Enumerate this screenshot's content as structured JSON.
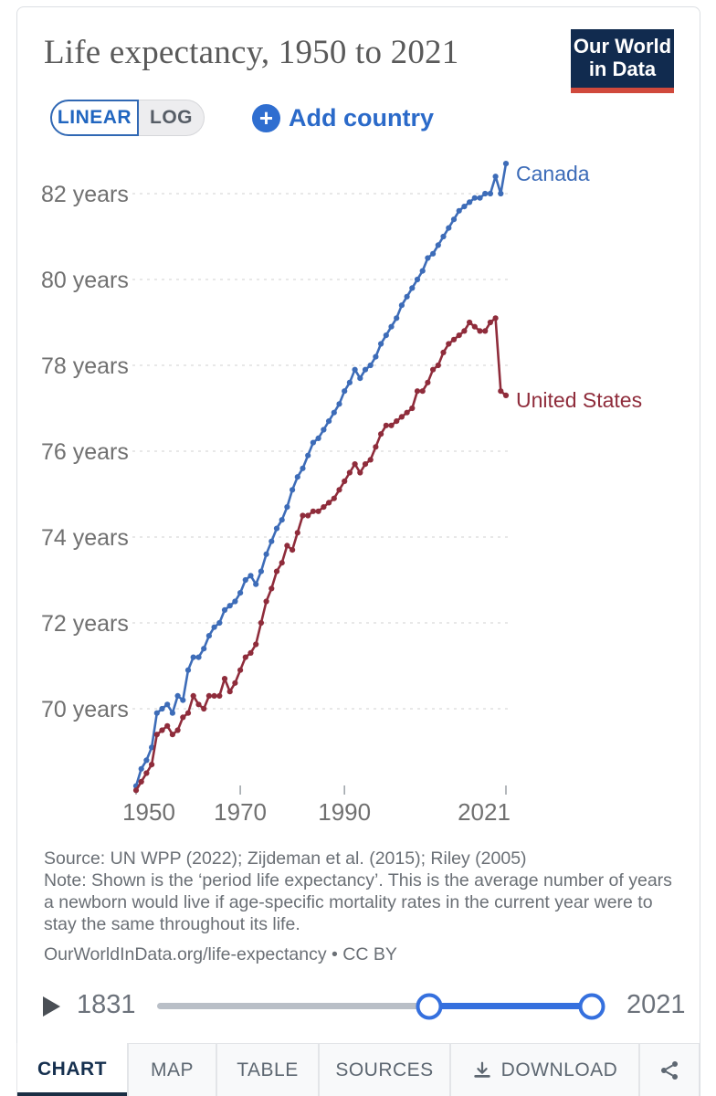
{
  "header": {
    "title": "Life expectancy, 1950 to 2021",
    "logo": {
      "line1": "Our World",
      "line2": "in Data"
    }
  },
  "controls": {
    "scale_toggle": {
      "linear_label": "LINEAR",
      "log_label": "LOG",
      "active": "LINEAR"
    },
    "add_country_label": "Add country"
  },
  "chart_data": {
    "type": "line",
    "title": "Life expectancy, 1950 to 2021",
    "y_unit": "years",
    "ylim": [
      68,
      83.5
    ],
    "xlim": [
      1948,
      2023
    ],
    "grid": "horizontal-dashed",
    "legend": "line-end-labels",
    "x": [
      1950,
      1951,
      1952,
      1953,
      1954,
      1955,
      1956,
      1957,
      1958,
      1959,
      1960,
      1961,
      1962,
      1963,
      1964,
      1965,
      1966,
      1967,
      1968,
      1969,
      1970,
      1971,
      1972,
      1973,
      1974,
      1975,
      1976,
      1977,
      1978,
      1979,
      1980,
      1981,
      1982,
      1983,
      1984,
      1985,
      1986,
      1987,
      1988,
      1989,
      1990,
      1991,
      1992,
      1993,
      1994,
      1995,
      1996,
      1997,
      1998,
      1999,
      2000,
      2001,
      2002,
      2003,
      2004,
      2005,
      2006,
      2007,
      2008,
      2009,
      2010,
      2011,
      2012,
      2013,
      2014,
      2015,
      2016,
      2017,
      2018,
      2019,
      2020,
      2021
    ],
    "series": [
      {
        "name": "Canada",
        "color": "#3d6cb8",
        "label_dy": 19,
        "values": [
          68.2,
          68.6,
          68.8,
          69.1,
          69.9,
          70.0,
          70.1,
          69.9,
          70.3,
          70.2,
          70.9,
          71.2,
          71.2,
          71.4,
          71.7,
          71.9,
          72.0,
          72.3,
          72.4,
          72.5,
          72.7,
          73.0,
          73.1,
          72.9,
          73.2,
          73.6,
          73.9,
          74.2,
          74.4,
          74.7,
          75.1,
          75.4,
          75.6,
          75.9,
          76.2,
          76.3,
          76.5,
          76.7,
          76.9,
          77.1,
          77.4,
          77.6,
          77.9,
          77.7,
          77.9,
          78.0,
          78.2,
          78.5,
          78.7,
          78.9,
          79.1,
          79.4,
          79.6,
          79.8,
          80.0,
          80.2,
          80.5,
          80.6,
          80.8,
          81.0,
          81.2,
          81.4,
          81.6,
          81.7,
          81.8,
          81.9,
          81.9,
          82.0,
          82.0,
          82.4,
          82.0,
          82.7
        ]
      },
      {
        "name": "United States",
        "color": "#8f2c3b",
        "label_dy": 13,
        "values": [
          68.1,
          68.3,
          68.5,
          68.7,
          69.4,
          69.5,
          69.6,
          69.4,
          69.5,
          69.8,
          69.9,
          70.3,
          70.1,
          70.0,
          70.3,
          70.3,
          70.3,
          70.7,
          70.4,
          70.6,
          70.9,
          71.2,
          71.3,
          71.5,
          72.0,
          72.5,
          72.8,
          73.2,
          73.4,
          73.8,
          73.7,
          74.1,
          74.5,
          74.5,
          74.6,
          74.6,
          74.7,
          74.8,
          74.9,
          75.1,
          75.3,
          75.5,
          75.7,
          75.5,
          75.7,
          75.8,
          76.1,
          76.4,
          76.6,
          76.6,
          76.7,
          76.8,
          76.9,
          77.0,
          77.4,
          77.4,
          77.6,
          77.9,
          78.0,
          78.3,
          78.5,
          78.6,
          78.7,
          78.8,
          79.0,
          78.9,
          78.8,
          78.8,
          79.0,
          79.1,
          77.4,
          77.3
        ]
      }
    ],
    "yticks": [
      {
        "value": 82,
        "label": "82 years"
      },
      {
        "value": 80,
        "label": "80 years"
      },
      {
        "value": 78,
        "label": "78 years"
      },
      {
        "value": 76,
        "label": "76 years"
      },
      {
        "value": 74,
        "label": "74 years"
      },
      {
        "value": 72,
        "label": "72 years"
      },
      {
        "value": 70,
        "label": "70 years"
      }
    ],
    "xticks": [
      {
        "year": 1950,
        "label": "1950",
        "label_dx": 14
      },
      {
        "year": 1970,
        "label": "1970",
        "label_dx": 0
      },
      {
        "year": 1990,
        "label": "1990",
        "label_dx": 0
      },
      {
        "year": 2021,
        "label": "2021",
        "label_dx": -24
      }
    ]
  },
  "footer": {
    "source": "Source: UN WPP (2022); Zijdeman et al. (2015); Riley (2005)",
    "note": "Note: Shown is the ‘period life expectancy’. This is the average number of years a newborn would live if age-specific mortality rates in the current year were to stay the same throughout its life.",
    "link": "OurWorldInData.org/life-expectancy • CC BY"
  },
  "timeline": {
    "start_label": "1831",
    "end_label": "2021",
    "selected_start_year": 1950,
    "selected_end_year": 2021
  },
  "tabs": [
    {
      "id": "chart",
      "label": "CHART",
      "active": true
    },
    {
      "id": "map",
      "label": "MAP",
      "active": false
    },
    {
      "id": "table",
      "label": "TABLE",
      "active": false
    },
    {
      "id": "sources",
      "label": "SOURCES",
      "active": false
    },
    {
      "id": "download",
      "label": "DOWNLOAD",
      "active": false
    },
    {
      "id": "share",
      "label": "",
      "active": false
    }
  ],
  "icons": {
    "add": "plus-circle",
    "play": "play-triangle",
    "download": "download-tray",
    "share": "share-nodes"
  },
  "colors": {
    "canada": "#3d6cb8",
    "united_states": "#8f2c3b",
    "ui_blue": "#2166c0",
    "slider_blue": "#3570de",
    "logo_navy": "#112b4f",
    "logo_red": "#d0493c",
    "grid": "#d9d9d9",
    "axis_text": "#707070"
  }
}
